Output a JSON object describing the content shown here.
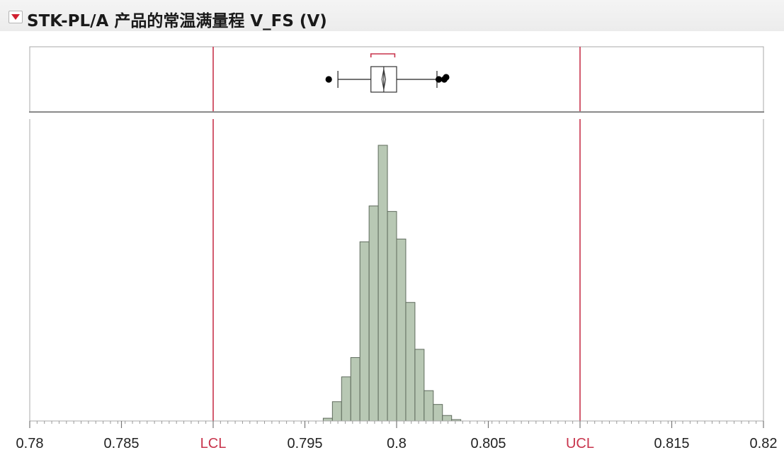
{
  "title": "STK-PL/A 产品的常温满量程 V_FS (V)",
  "colors": {
    "bar_fill": "#b8c8b4",
    "bar_stroke": "#5f6b5d",
    "limit_line": "#c8344c",
    "limit_label": "#c8344c",
    "frame": "#a8a8a8",
    "toggle_arrow": "#d02030"
  },
  "chart_data": {
    "type": "bar",
    "subtype": "histogram-with-boxplot",
    "title": "STK-PL/A 产品的常温满量程 V_FS (V)",
    "xlabel": "",
    "ylabel": "",
    "xlim": [
      0.78,
      0.82
    ],
    "grid": false,
    "ticks": [
      {
        "value": 0.78,
        "label": "0.78",
        "limit": false
      },
      {
        "value": 0.785,
        "label": "0.785",
        "limit": false
      },
      {
        "value": 0.79,
        "label": "LCL",
        "limit": true
      },
      {
        "value": 0.795,
        "label": "0.795",
        "limit": false
      },
      {
        "value": 0.8,
        "label": "0.8",
        "limit": false
      },
      {
        "value": 0.805,
        "label": "0.805",
        "limit": false
      },
      {
        "value": 0.81,
        "label": "UCL",
        "limit": true
      },
      {
        "value": 0.815,
        "label": "0.815",
        "limit": false
      },
      {
        "value": 0.82,
        "label": "0.82",
        "limit": false
      }
    ],
    "limits": [
      {
        "name": "LCL",
        "value": 0.79
      },
      {
        "name": "UCL",
        "value": 0.81
      }
    ],
    "bin_width": 0.0005,
    "bins": [
      {
        "start": 0.796,
        "height": 0.01
      },
      {
        "start": 0.7965,
        "height": 0.07
      },
      {
        "start": 0.797,
        "height": 0.16
      },
      {
        "start": 0.7975,
        "height": 0.23
      },
      {
        "start": 0.798,
        "height": 0.65
      },
      {
        "start": 0.7985,
        "height": 0.78
      },
      {
        "start": 0.799,
        "height": 1.0
      },
      {
        "start": 0.7995,
        "height": 0.76
      },
      {
        "start": 0.8,
        "height": 0.66
      },
      {
        "start": 0.8005,
        "height": 0.43
      },
      {
        "start": 0.801,
        "height": 0.26
      },
      {
        "start": 0.8015,
        "height": 0.11
      },
      {
        "start": 0.802,
        "height": 0.06
      },
      {
        "start": 0.8025,
        "height": 0.02
      },
      {
        "start": 0.803,
        "height": 0.005
      }
    ],
    "boxplot": {
      "whisker_low": 0.7968,
      "q1": 0.7986,
      "median": 0.7993,
      "q3": 0.8,
      "whisker_high": 0.8022,
      "mean": 0.7993,
      "mean_diamond_half_width": 0.0001,
      "shortest_half": [
        0.7986,
        0.7999
      ],
      "outliers": [
        0.7963,
        0.8023,
        0.8026,
        0.8027
      ]
    }
  }
}
